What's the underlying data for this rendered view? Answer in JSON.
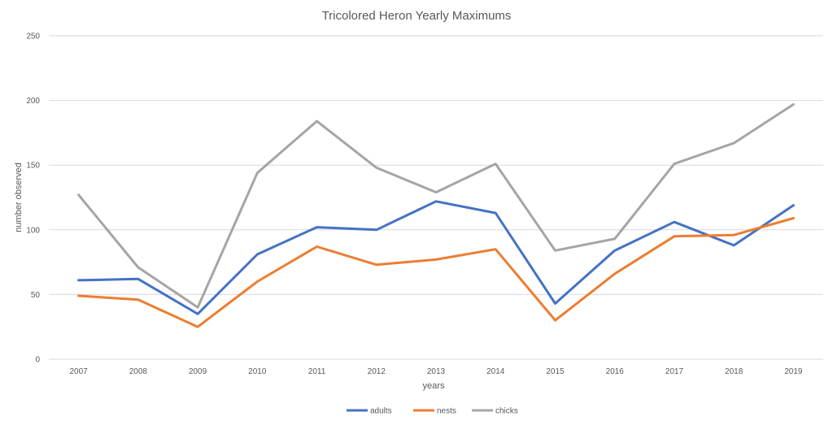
{
  "chart_data": {
    "type": "line",
    "title": "Tricolored Heron Yearly Maximums",
    "xlabel": "years",
    "ylabel": "number observed",
    "categories": [
      "2007",
      "2008",
      "2009",
      "2010",
      "2011",
      "2012",
      "2013",
      "2014",
      "2015",
      "2016",
      "2017",
      "2018",
      "2019"
    ],
    "yticks": [
      "0",
      "50",
      "100",
      "150",
      "200",
      "250"
    ],
    "ylim": [
      0,
      250
    ],
    "grid": true,
    "legend_position": "bottom",
    "series": [
      {
        "name": "adults",
        "color": "#4472c4",
        "values": [
          61,
          62,
          35,
          81,
          102,
          100,
          122,
          113,
          43,
          84,
          106,
          88,
          119
        ]
      },
      {
        "name": "nests",
        "color": "#ed7d31",
        "values": [
          49,
          46,
          25,
          60,
          87,
          73,
          77,
          85,
          30,
          66,
          95,
          96,
          109
        ]
      },
      {
        "name": "chicks",
        "color": "#a5a5a5",
        "values": [
          127,
          71,
          40,
          144,
          184,
          148,
          129,
          151,
          84,
          93,
          151,
          167,
          197
        ]
      }
    ]
  }
}
